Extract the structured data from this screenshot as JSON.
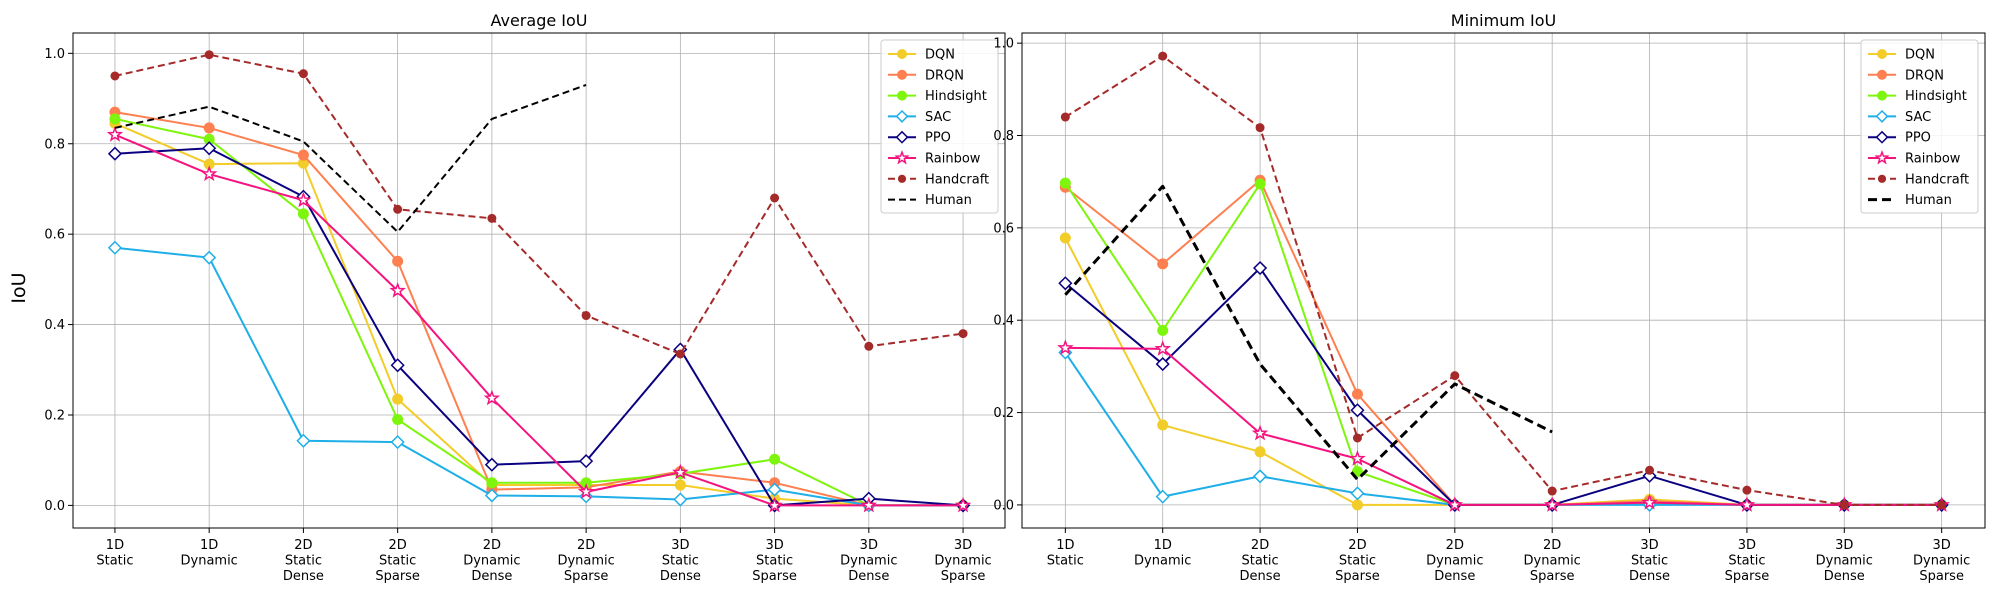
{
  "figure": {
    "ylabel": "IoU"
  },
  "chart_data": [
    {
      "type": "line",
      "title": "Average IoU",
      "ylabel": "IoU",
      "xlabel": "",
      "ylim": [
        -0.05,
        1.045
      ],
      "yticks": [
        0.0,
        0.2,
        0.4,
        0.6,
        0.8,
        1.0
      ],
      "ytick_labels": [
        "0.0",
        "0.2",
        "0.4",
        "0.6",
        "0.8",
        "1.0"
      ],
      "grid": true,
      "legend": "top-right",
      "categories": [
        [
          "1D",
          "Static"
        ],
        [
          "1D",
          "Dynamic"
        ],
        [
          "2D",
          "Static",
          "Dense"
        ],
        [
          "2D",
          "Static",
          "Sparse"
        ],
        [
          "2D",
          "Dynamic",
          "Dense"
        ],
        [
          "2D",
          "Dynamic",
          "Sparse"
        ],
        [
          "3D",
          "Static",
          "Dense"
        ],
        [
          "3D",
          "Static",
          "Sparse"
        ],
        [
          "3D",
          "Dynamic",
          "Dense"
        ],
        [
          "3D",
          "Dynamic",
          "Sparse"
        ]
      ],
      "series": [
        {
          "name": "DQN",
          "color": "#f2cc28",
          "marker": "circle",
          "dash": "solid",
          "values": [
            0.845,
            0.755,
            0.757,
            0.235,
            0.045,
            0.045,
            0.045,
            0.015,
            0.0,
            0.0
          ]
        },
        {
          "name": "DRQN",
          "color": "#fe7f50",
          "marker": "circle",
          "dash": "solid",
          "values": [
            0.87,
            0.835,
            0.775,
            0.54,
            0.035,
            0.04,
            0.075,
            0.05,
            0.0,
            0.0
          ]
        },
        {
          "name": "Hindsight",
          "color": "#7ef50c",
          "marker": "circle",
          "dash": "solid",
          "values": [
            0.855,
            0.81,
            0.645,
            0.19,
            0.05,
            0.05,
            0.07,
            0.102,
            0.0,
            0.0
          ]
        },
        {
          "name": "SAC",
          "color": "#1eaee8",
          "marker": "diamond",
          "dash": "solid",
          "values": [
            0.57,
            0.548,
            0.143,
            0.14,
            0.022,
            0.02,
            0.013,
            0.035,
            0.0,
            0.0
          ]
        },
        {
          "name": "PPO",
          "color": "#0a0080",
          "marker": "diamond",
          "dash": "solid",
          "values": [
            0.778,
            0.79,
            0.683,
            0.31,
            0.09,
            0.098,
            0.345,
            0.0,
            0.015,
            0.0
          ]
        },
        {
          "name": "Rainbow",
          "color": "#f5137f",
          "marker": "star",
          "dash": "solid",
          "values": [
            0.82,
            0.733,
            0.675,
            0.475,
            0.237,
            0.03,
            0.073,
            0.0,
            0.0,
            0.0
          ]
        },
        {
          "name": "Handcraft",
          "color": "#a52a2a",
          "marker": "smallcircle",
          "dash": "dashed",
          "values": [
            0.95,
            0.997,
            0.955,
            0.655,
            0.635,
            0.42,
            0.335,
            0.68,
            0.352,
            0.38
          ]
        },
        {
          "name": "Human",
          "color": "#000000",
          "marker": "none",
          "dash": "dashed",
          "values": [
            0.835,
            0.882,
            0.805,
            0.605,
            0.855,
            0.93,
            null,
            null,
            null,
            null
          ]
        }
      ]
    },
    {
      "type": "line",
      "title": "Minimum IoU",
      "ylabel": "",
      "xlabel": "",
      "ylim": [
        -0.05,
        1.022
      ],
      "yticks": [
        0.0,
        0.2,
        0.4,
        0.6,
        0.8,
        1.0
      ],
      "ytick_labels": [
        "0.0",
        "0.2",
        "0.4",
        "0.6",
        "0.8",
        "1.0"
      ],
      "grid": true,
      "legend": "top-right",
      "categories": [
        [
          "1D",
          "Static"
        ],
        [
          "1D",
          "Dynamic"
        ],
        [
          "2D",
          "Static",
          "Dense"
        ],
        [
          "2D",
          "Static",
          "Sparse"
        ],
        [
          "2D",
          "Dynamic",
          "Dense"
        ],
        [
          "2D",
          "Dynamic",
          "Sparse"
        ],
        [
          "3D",
          "Static",
          "Dense"
        ],
        [
          "3D",
          "Static",
          "Sparse"
        ],
        [
          "3D",
          "Dynamic",
          "Dense"
        ],
        [
          "3D",
          "Dynamic",
          "Sparse"
        ]
      ],
      "series": [
        {
          "name": "DQN",
          "color": "#f2cc28",
          "marker": "circle",
          "dash": "solid",
          "values": [
            0.578,
            0.173,
            0.115,
            0.0,
            0.0,
            0.0,
            0.012,
            0.0,
            0.0,
            0.0
          ]
        },
        {
          "name": "DRQN",
          "color": "#fe7f50",
          "marker": "circle",
          "dash": "solid",
          "values": [
            0.688,
            0.522,
            0.703,
            0.24,
            0.0,
            0.0,
            0.008,
            0.0,
            0.0,
            0.0
          ]
        },
        {
          "name": "Hindsight",
          "color": "#7ef50c",
          "marker": "circle",
          "dash": "solid",
          "values": [
            0.697,
            0.378,
            0.695,
            0.072,
            0.0,
            0.0,
            0.003,
            0.0,
            0.0,
            0.0
          ]
        },
        {
          "name": "SAC",
          "color": "#1eaee8",
          "marker": "diamond",
          "dash": "solid",
          "values": [
            0.33,
            0.018,
            0.062,
            0.025,
            0.0,
            0.0,
            0.0,
            0.0,
            0.0,
            0.0
          ]
        },
        {
          "name": "PPO",
          "color": "#0a0080",
          "marker": "diamond",
          "dash": "solid",
          "values": [
            0.48,
            0.305,
            0.513,
            0.205,
            0.0,
            0.0,
            0.063,
            0.0,
            0.0,
            0.0
          ]
        },
        {
          "name": "Rainbow",
          "color": "#f5137f",
          "marker": "star",
          "dash": "solid",
          "values": [
            0.34,
            0.338,
            0.155,
            0.1,
            0.0,
            0.0,
            0.005,
            0.0,
            0.0,
            0.0
          ]
        },
        {
          "name": "Handcraft",
          "color": "#a52a2a",
          "marker": "smallcircle",
          "dash": "dashed",
          "values": [
            0.84,
            0.972,
            0.817,
            0.145,
            0.28,
            0.03,
            0.075,
            0.032,
            0.0,
            0.0
          ]
        },
        {
          "name": "Human",
          "color": "#000000",
          "marker": "none",
          "dash": "boldDashed",
          "values": [
            0.455,
            0.69,
            0.305,
            0.055,
            0.262,
            0.158,
            null,
            null,
            null,
            null
          ]
        }
      ]
    }
  ]
}
